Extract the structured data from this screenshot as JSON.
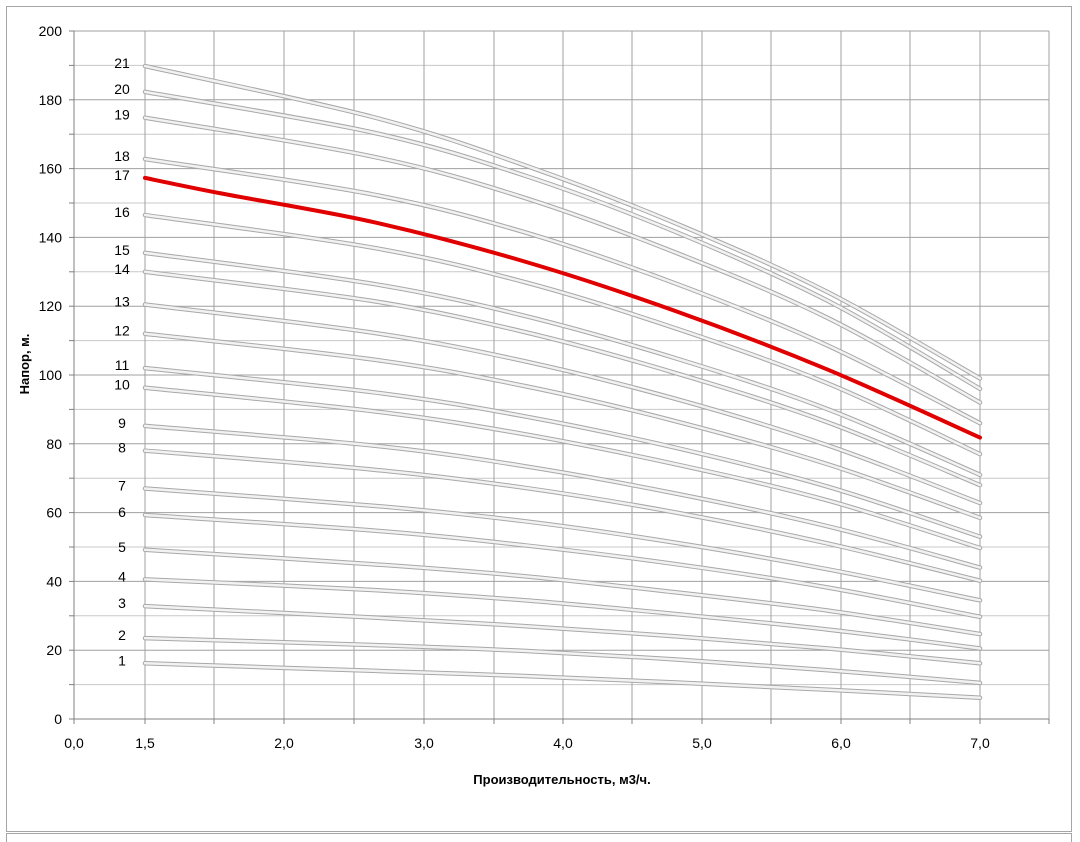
{
  "chart_data": {
    "type": "line",
    "title": "",
    "xlabel": "Производительность, м3/ч.",
    "ylabel": "Напор, м.",
    "xlim": [
      0,
      7.0
    ],
    "ylim": [
      0,
      200
    ],
    "x_tick_labels": [
      "0,0",
      "1,5",
      "2,0",
      "3,0",
      "4,0",
      "5,0",
      "6,0",
      "7,0"
    ],
    "y_tick_labels": [
      "0",
      "20",
      "40",
      "60",
      "80",
      "100",
      "120",
      "140",
      "160",
      "180",
      "200"
    ],
    "grid": true,
    "highlight_color": "#e00000",
    "curve_color": "#c8c8c8",
    "series": [
      {
        "name": "1",
        "x": [
          1.5,
          3.0,
          4.0,
          5.0,
          6.0,
          7.0
        ],
        "values": [
          16.2,
          14.0,
          12.5,
          10.6,
          8.5,
          6.2
        ]
      },
      {
        "name": "2",
        "x": [
          1.5,
          3.0,
          4.0,
          5.0,
          6.0,
          7.0
        ],
        "values": [
          23.5,
          21.5,
          19.8,
          17.3,
          14.2,
          10.5
        ]
      },
      {
        "name": "3",
        "x": [
          1.5,
          3.0,
          4.0,
          5.0,
          6.0,
          7.0
        ],
        "values": [
          32.8,
          29.5,
          27.0,
          24.0,
          20.5,
          16.2
        ]
      },
      {
        "name": "4",
        "x": [
          1.5,
          3.0,
          4.0,
          5.0,
          6.0,
          7.0
        ],
        "values": [
          40.6,
          37.5,
          34.5,
          30.5,
          26.0,
          20.5
        ]
      },
      {
        "name": "5",
        "x": [
          1.5,
          3.0,
          4.0,
          5.0,
          6.0,
          7.0
        ],
        "values": [
          49.2,
          45.0,
          41.5,
          36.8,
          31.5,
          24.7
        ]
      },
      {
        "name": "6",
        "x": [
          1.5,
          3.0,
          4.0,
          5.0,
          6.0,
          7.0
        ],
        "values": [
          59.3,
          54.8,
          50.5,
          45.0,
          38.2,
          29.7
        ]
      },
      {
        "name": "7",
        "x": [
          1.5,
          3.0,
          4.0,
          5.0,
          6.0,
          7.0
        ],
        "values": [
          67.0,
          62.0,
          57.5,
          51.2,
          43.5,
          34.5
        ]
      },
      {
        "name": "8",
        "x": [
          1.5,
          3.0,
          4.0,
          5.0,
          6.0,
          7.0
        ],
        "values": [
          78.0,
          72.5,
          67.2,
          60.0,
          51.0,
          40.2
        ]
      },
      {
        "name": "9",
        "x": [
          1.5,
          3.0,
          4.0,
          5.0,
          6.0,
          7.0
        ],
        "values": [
          85.2,
          79.5,
          73.5,
          65.5,
          56.0,
          44.0
        ]
      },
      {
        "name": "10",
        "x": [
          1.5,
          3.0,
          4.0,
          5.0,
          6.0,
          7.0
        ],
        "values": [
          96.3,
          89.5,
          82.8,
          74.0,
          63.5,
          49.7
        ]
      },
      {
        "name": "11",
        "x": [
          1.5,
          3.0,
          4.0,
          5.0,
          6.0,
          7.0
        ],
        "values": [
          102.0,
          95.0,
          88.0,
          78.8,
          67.5,
          53.0
        ]
      },
      {
        "name": "12",
        "x": [
          1.5,
          3.0,
          4.0,
          5.0,
          6.0,
          7.0
        ],
        "values": [
          112.0,
          104.5,
          96.8,
          86.5,
          74.0,
          58.5
        ]
      },
      {
        "name": "13",
        "x": [
          1.5,
          3.0,
          4.0,
          5.0,
          6.0,
          7.0
        ],
        "values": [
          120.5,
          112.3,
          104.0,
          93.0,
          79.5,
          62.8
        ]
      },
      {
        "name": "14",
        "x": [
          1.5,
          3.0,
          4.0,
          5.0,
          6.0,
          7.0
        ],
        "values": [
          130.0,
          121.5,
          112.5,
          100.5,
          86.2,
          68.0
        ]
      },
      {
        "name": "15",
        "x": [
          1.5,
          3.0,
          4.0,
          5.0,
          6.0,
          7.0
        ],
        "values": [
          135.5,
          126.5,
          117.2,
          104.8,
          90.0,
          71.0
        ]
      },
      {
        "name": "16",
        "x": [
          1.5,
          3.0,
          4.0,
          5.0,
          6.0,
          7.0
        ],
        "values": [
          146.5,
          137.0,
          127.0,
          113.5,
          97.5,
          77.0
        ]
      },
      {
        "name": "17",
        "x": [
          1.5,
          2.0,
          3.0,
          4.0,
          5.0,
          6.0,
          7.0
        ],
        "values": [
          157.3,
          152.8,
          144.5,
          133.0,
          118.5,
          101.5,
          81.8
        ]
      },
      {
        "name": "18",
        "x": [
          1.5,
          3.0,
          4.0,
          5.0,
          6.0,
          7.0
        ],
        "values": [
          162.8,
          152.5,
          141.5,
          126.5,
          108.5,
          86.0
        ]
      },
      {
        "name": "19",
        "x": [
          1.5,
          3.0,
          4.0,
          5.0,
          6.0,
          7.0
        ],
        "values": [
          174.8,
          163.5,
          151.5,
          135.5,
          116.5,
          92.0
        ]
      },
      {
        "name": "20",
        "x": [
          1.5,
          3.0,
          4.0,
          5.0,
          6.0,
          7.0
        ],
        "values": [
          182.3,
          170.5,
          158.0,
          141.5,
          121.5,
          96.0
        ]
      },
      {
        "name": "21",
        "x": [
          1.5,
          3.0,
          4.0,
          5.0,
          6.0,
          7.0
        ],
        "values": [
          189.8,
          175.0,
          161.0,
          144.0,
          124.0,
          99.0
        ]
      }
    ],
    "highlighted_series": "17"
  }
}
